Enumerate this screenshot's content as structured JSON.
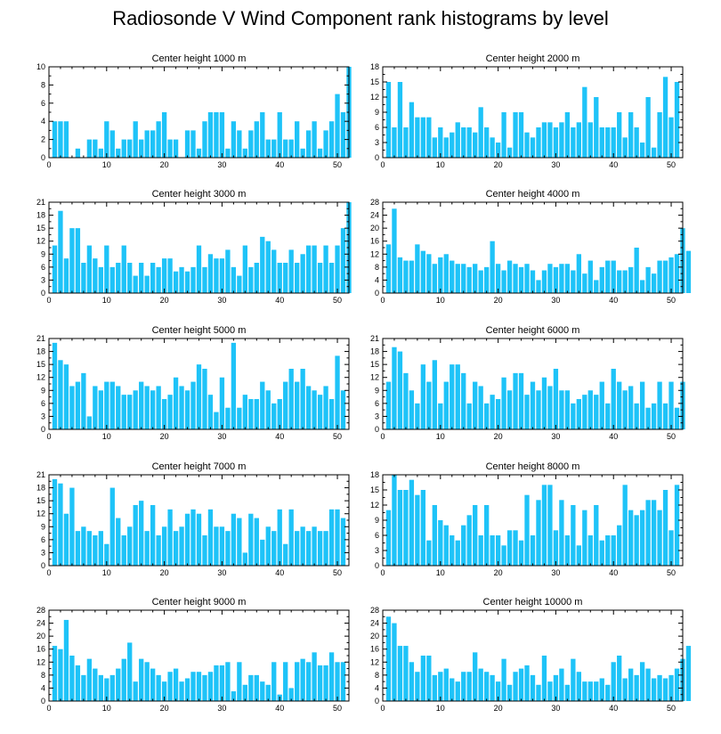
{
  "title": "Radiosonde V Wind Component rank histograms by level",
  "colors": {
    "bar": "#1ec3f8",
    "axis": "#000000"
  },
  "chart_data": [
    {
      "type": "bar",
      "title": "Center height 1000 m",
      "xlim": [
        0,
        52
      ],
      "ylim": [
        0,
        10
      ],
      "xticks": [
        0,
        10,
        20,
        30,
        40,
        50
      ],
      "yticks": [
        0,
        2,
        4,
        6,
        8,
        10
      ],
      "values": [
        4,
        4,
        4,
        0,
        1,
        0,
        2,
        2,
        1,
        4,
        3,
        1,
        2,
        2,
        4,
        2,
        3,
        3,
        4,
        5,
        2,
        2,
        0,
        3,
        3,
        1,
        4,
        5,
        5,
        5,
        1,
        4,
        3,
        1,
        3,
        4,
        5,
        2,
        2,
        5,
        2,
        2,
        4,
        1,
        3,
        4,
        1,
        3,
        4,
        7,
        5,
        10
      ]
    },
    {
      "type": "bar",
      "title": "Center height 2000 m",
      "xlim": [
        0,
        52
      ],
      "ylim": [
        0,
        18
      ],
      "xticks": [
        0,
        10,
        20,
        30,
        40,
        50
      ],
      "yticks": [
        0,
        3,
        6,
        9,
        12,
        15,
        18
      ],
      "values": [
        15,
        6,
        15,
        6,
        11,
        8,
        8,
        8,
        4,
        6,
        4,
        5,
        7,
        6,
        6,
        5,
        10,
        6,
        4,
        3,
        9,
        2,
        9,
        9,
        5,
        4,
        6,
        7,
        7,
        6,
        7,
        9,
        6,
        7,
        14,
        7,
        12,
        6,
        6,
        6,
        9,
        4,
        9,
        6,
        3,
        12,
        2,
        9,
        16,
        8,
        15
      ]
    },
    {
      "type": "bar",
      "title": "Center height 3000 m",
      "xlim": [
        0,
        52
      ],
      "ylim": [
        0,
        21
      ],
      "xticks": [
        0,
        10,
        20,
        30,
        40,
        50
      ],
      "yticks": [
        0,
        3,
        6,
        9,
        12,
        15,
        18,
        21
      ],
      "values": [
        11,
        19,
        8,
        15,
        15,
        7,
        11,
        8,
        6,
        11,
        6,
        7,
        11,
        7,
        4,
        7,
        4,
        7,
        6,
        8,
        8,
        5,
        6,
        5,
        6,
        11,
        6,
        9,
        8,
        8,
        10,
        6,
        4,
        11,
        6,
        7,
        13,
        12,
        10,
        7,
        7,
        10,
        7,
        9,
        11,
        11,
        7,
        11,
        7,
        11,
        15,
        21
      ]
    },
    {
      "type": "bar",
      "title": "Center height 4000 m",
      "xlim": [
        0,
        52
      ],
      "ylim": [
        0,
        28
      ],
      "xticks": [
        0,
        10,
        20,
        30,
        40,
        50
      ],
      "yticks": [
        0,
        4,
        8,
        12,
        16,
        20,
        24,
        28
      ],
      "values": [
        15,
        26,
        11,
        10,
        10,
        15,
        13,
        12,
        9,
        11,
        12,
        10,
        9,
        9,
        8,
        9,
        7,
        8,
        16,
        9,
        7,
        10,
        9,
        8,
        9,
        7,
        4,
        7,
        9,
        8,
        9,
        9,
        7,
        12,
        6,
        10,
        4,
        8,
        10,
        10,
        7,
        7,
        8,
        14,
        4,
        8,
        6,
        10,
        10,
        11,
        12,
        20,
        13
      ]
    },
    {
      "type": "bar",
      "title": "Center height 5000 m",
      "xlim": [
        0,
        52
      ],
      "ylim": [
        0,
        21
      ],
      "xticks": [
        0,
        10,
        20,
        30,
        40,
        50
      ],
      "yticks": [
        0,
        3,
        6,
        9,
        12,
        15,
        18,
        21
      ],
      "values": [
        20,
        16,
        15,
        10,
        11,
        13,
        3,
        10,
        9,
        11,
        11,
        10,
        8,
        8,
        9,
        11,
        10,
        9,
        10,
        7,
        8,
        12,
        10,
        9,
        11,
        15,
        14,
        8,
        4,
        12,
        5,
        20,
        5,
        8,
        7,
        7,
        11,
        9,
        6,
        7,
        11,
        14,
        11,
        14,
        10,
        9,
        8,
        10,
        7,
        17,
        9
      ]
    },
    {
      "type": "bar",
      "title": "Center height 6000 m",
      "xlim": [
        0,
        52
      ],
      "ylim": [
        0,
        21
      ],
      "xticks": [
        0,
        10,
        20,
        30,
        40,
        50
      ],
      "yticks": [
        0,
        3,
        6,
        9,
        12,
        15,
        18,
        21
      ],
      "values": [
        11,
        19,
        18,
        13,
        9,
        6,
        15,
        11,
        16,
        6,
        11,
        15,
        15,
        13,
        6,
        11,
        10,
        6,
        8,
        7,
        12,
        9,
        13,
        13,
        8,
        11,
        9,
        12,
        10,
        14,
        9,
        9,
        6,
        7,
        8,
        9,
        8,
        11,
        6,
        14,
        11,
        9,
        10,
        6,
        11,
        5,
        6,
        11,
        6,
        11,
        5,
        11
      ]
    },
    {
      "type": "bar",
      "title": "Center height 7000 m",
      "xlim": [
        0,
        52
      ],
      "ylim": [
        0,
        21
      ],
      "xticks": [
        0,
        10,
        20,
        30,
        40,
        50
      ],
      "yticks": [
        0,
        3,
        6,
        9,
        12,
        15,
        18,
        21
      ],
      "values": [
        20,
        19,
        12,
        18,
        8,
        9,
        8,
        7,
        8,
        5,
        18,
        11,
        7,
        9,
        14,
        15,
        8,
        14,
        7,
        9,
        13,
        8,
        9,
        12,
        13,
        12,
        7,
        13,
        9,
        9,
        8,
        12,
        11,
        3,
        12,
        11,
        6,
        9,
        8,
        13,
        5,
        13,
        8,
        9,
        8,
        9,
        8,
        8,
        13,
        13,
        11
      ]
    },
    {
      "type": "bar",
      "title": "Center height 8000 m",
      "xlim": [
        0,
        52
      ],
      "ylim": [
        0,
        18
      ],
      "xticks": [
        0,
        10,
        20,
        30,
        40,
        50
      ],
      "yticks": [
        0,
        3,
        6,
        9,
        12,
        15,
        18
      ],
      "values": [
        11,
        18,
        15,
        15,
        17,
        14,
        15,
        5,
        12,
        9,
        8,
        6,
        5,
        8,
        10,
        12,
        6,
        12,
        6,
        6,
        4,
        7,
        7,
        5,
        14,
        6,
        13,
        16,
        16,
        7,
        13,
        6,
        12,
        4,
        11,
        6,
        12,
        5,
        6,
        6,
        8,
        16,
        11,
        10,
        11,
        13,
        13,
        11,
        15,
        7,
        16
      ]
    },
    {
      "type": "bar",
      "title": "Center height 9000 m",
      "xlim": [
        0,
        52
      ],
      "ylim": [
        0,
        28
      ],
      "xticks": [
        0,
        10,
        20,
        30,
        40,
        50
      ],
      "yticks": [
        0,
        4,
        8,
        12,
        16,
        20,
        24,
        28
      ],
      "values": [
        17,
        16,
        25,
        14,
        11,
        8,
        13,
        10,
        8,
        7,
        8,
        10,
        13,
        18,
        6,
        13,
        12,
        10,
        8,
        6,
        9,
        10,
        6,
        7,
        9,
        9,
        8,
        9,
        11,
        11,
        12,
        3,
        12,
        5,
        8,
        8,
        6,
        5,
        12,
        2,
        12,
        4,
        12,
        13,
        12,
        15,
        11,
        11,
        15,
        12,
        12
      ]
    },
    {
      "type": "bar",
      "title": "Center height 10000 m",
      "xlim": [
        0,
        52
      ],
      "ylim": [
        0,
        28
      ],
      "xticks": [
        0,
        10,
        20,
        30,
        40,
        50
      ],
      "yticks": [
        0,
        4,
        8,
        12,
        16,
        20,
        24,
        28
      ],
      "values": [
        26,
        24,
        17,
        17,
        12,
        9,
        14,
        14,
        8,
        9,
        10,
        7,
        6,
        9,
        9,
        15,
        10,
        9,
        8,
        6,
        13,
        5,
        9,
        10,
        11,
        8,
        5,
        14,
        6,
        8,
        10,
        5,
        13,
        9,
        6,
        6,
        6,
        7,
        5,
        12,
        14,
        7,
        10,
        8,
        12,
        10,
        7,
        8,
        7,
        8,
        10,
        13,
        17
      ]
    }
  ]
}
